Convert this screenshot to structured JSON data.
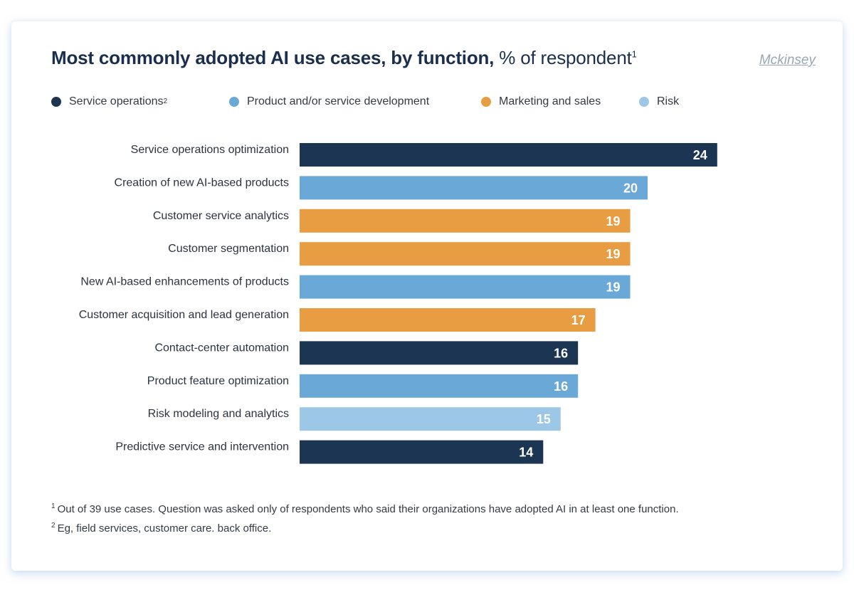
{
  "header": {
    "title_bold": "Most commonly adopted AI use cases, by function,",
    "title_light": "% of respondent",
    "title_sup": "1",
    "brand": "Mckinsey"
  },
  "legend": [
    {
      "label": "Service operations",
      "sup": "2",
      "color": "#1b3553"
    },
    {
      "label": "Product and/or service development",
      "sup": "",
      "color": "#6aa8d8"
    },
    {
      "label": "Marketing and sales",
      "sup": "",
      "color": "#e89d42"
    },
    {
      "label": "Risk",
      "sup": "",
      "color": "#9cc7e6"
    }
  ],
  "chart_data": {
    "type": "bar",
    "orientation": "horizontal",
    "title": "Most commonly adopted AI use cases, by function, % of respondent",
    "categories": [
      "Service operations optimization",
      "Creation of new AI-based products",
      "Customer service analytics",
      "Customer segmentation",
      "New AI-based enhancements of products",
      "Customer acquisition and lead generation",
      "Contact-center automation",
      "Product feature optimization",
      "Risk modeling and analytics",
      "Predictive service and intervention"
    ],
    "values": [
      24,
      20,
      19,
      19,
      19,
      17,
      16,
      16,
      15,
      14
    ],
    "groups": [
      "Service operations",
      "Product and/or service development",
      "Marketing and sales",
      "Marketing and sales",
      "Product and/or service development",
      "Marketing and sales",
      "Service operations",
      "Product and/or service development",
      "Risk",
      "Service operations"
    ],
    "colors": {
      "Service operations": "#1b3553",
      "Product and/or service development": "#6aa8d8",
      "Marketing and sales": "#e89d42",
      "Risk": "#9cc7e6"
    },
    "data_labels": true,
    "grid": false,
    "legend_position": "top-left"
  },
  "footnotes": {
    "note1_marker": "1",
    "note1": "Out of 39 use cases. Question was asked only of respondents who said their organizations have adopted AI in at least one function.",
    "note2_marker": "2",
    "note2": "Eg, field services, customer care. back office."
  }
}
